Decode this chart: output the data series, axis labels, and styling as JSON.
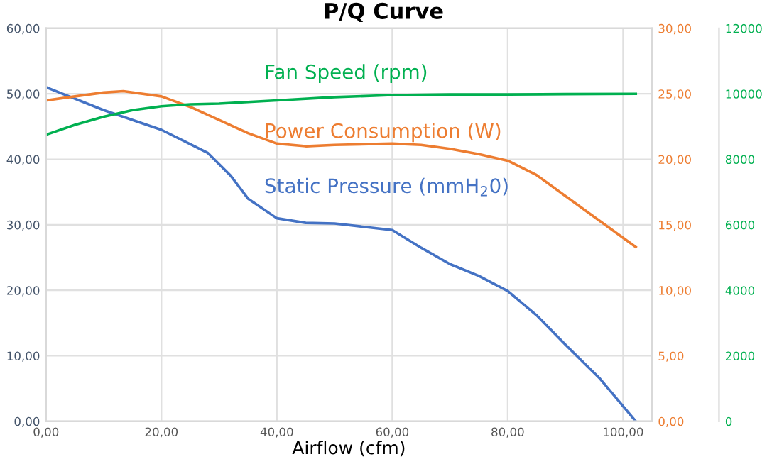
{
  "chart_data": {
    "type": "line",
    "title": "P/Q Curve",
    "xlabel": "Airflow (cfm)",
    "xlim": [
      0,
      105
    ],
    "xticks": [
      {
        "value": 0,
        "label": "0,00"
      },
      {
        "value": 20,
        "label": "20,00"
      },
      {
        "value": 40,
        "label": "40,00"
      },
      {
        "value": 60,
        "label": "60,00"
      },
      {
        "value": 80,
        "label": "80,00"
      },
      {
        "value": 100,
        "label": "100,00"
      }
    ],
    "ylim": [
      0,
      60
    ],
    "yticks": [
      {
        "value": 0,
        "label": "0,00"
      },
      {
        "value": 10,
        "label": "10,00"
      },
      {
        "value": 20,
        "label": "20,00"
      },
      {
        "value": 30,
        "label": "30,00"
      },
      {
        "value": 40,
        "label": "40,00"
      },
      {
        "value": 50,
        "label": "50,00"
      },
      {
        "value": 60,
        "label": "60,00"
      }
    ],
    "y2lim": [
      0,
      30
    ],
    "y2ticks": [
      {
        "value": 0,
        "label": "0,00"
      },
      {
        "value": 5,
        "label": "5,00"
      },
      {
        "value": 10,
        "label": "10,00"
      },
      {
        "value": 15,
        "label": "15,00"
      },
      {
        "value": 20,
        "label": "20,00"
      },
      {
        "value": 25,
        "label": "25,00"
      },
      {
        "value": 30,
        "label": "30,00"
      }
    ],
    "y3lim": [
      0,
      12000
    ],
    "y3ticks": [
      0,
      2000,
      4000,
      6000,
      8000,
      10000,
      12000
    ],
    "grid": true,
    "legend": false,
    "marker": "none",
    "line_style": "solid",
    "series": [
      {
        "name": "Fan Speed (rpm)",
        "color": "#00b050",
        "axis": "y3",
        "x": [
          0,
          5,
          10,
          15,
          20,
          25,
          30,
          40,
          50,
          60,
          70,
          80,
          90,
          102.2
        ],
        "values": [
          8750,
          9050,
          9300,
          9500,
          9620,
          9680,
          9700,
          9800,
          9900,
          9960,
          9980,
          9980,
          9990,
          10000
        ]
      },
      {
        "name": "Power Consumption (W)",
        "color": "#ed7d31",
        "axis": "y2",
        "x": [
          0,
          5,
          10,
          13.4,
          20,
          25,
          30,
          35,
          40,
          45,
          50,
          60,
          65,
          70,
          75,
          80,
          85,
          90,
          95,
          102.2
        ],
        "values": [
          24.5,
          24.8,
          25.1,
          25.2,
          24.8,
          24.0,
          23.0,
          22.0,
          21.2,
          21.0,
          21.1,
          21.2,
          21.1,
          20.8,
          20.4,
          19.9,
          18.8,
          17.2,
          15.6,
          13.3
        ]
      },
      {
        "name": "Static Pressure (mmH$_{2}$0)",
        "color": "#4472c4",
        "x": [
          0,
          10,
          20,
          28,
          32,
          35,
          40,
          45,
          50,
          57,
          60,
          65,
          70,
          75,
          80,
          85,
          90,
          96,
          102.2
        ],
        "values": [
          51,
          47.5,
          44.5,
          41,
          37.5,
          34,
          31,
          30.3,
          30.2,
          29.5,
          29.2,
          26.5,
          24,
          22.2,
          19.9,
          16.2,
          11.7,
          6.5,
          0
        ]
      }
    ]
  }
}
